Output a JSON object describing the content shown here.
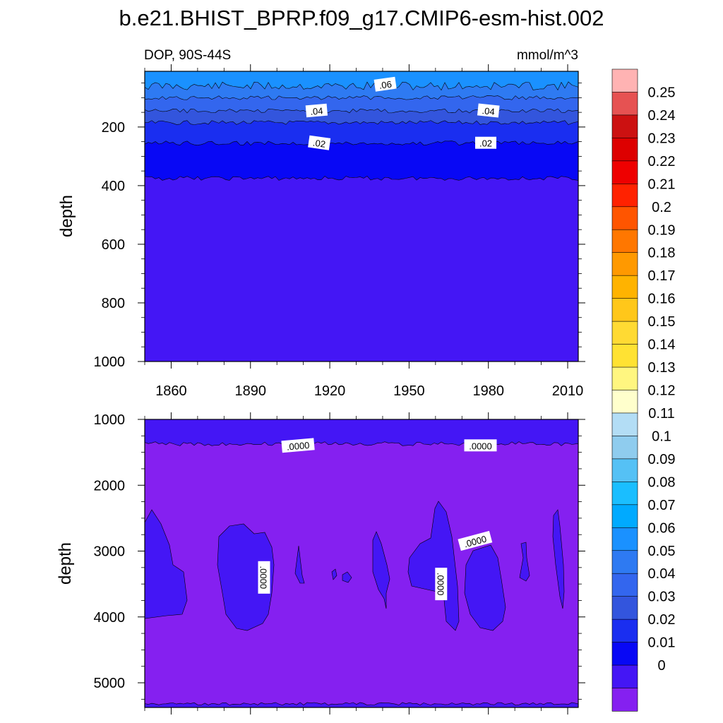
{
  "title": "b.e21.BHIST_BPRP.f09_g17.CMIP6-esm-hist.002",
  "chart_data": [
    {
      "type": "heatmap",
      "panel": "upper",
      "left_string": "DOP, 90S-44S",
      "right_string": "mmol/m^3",
      "ylabel": "depth",
      "xlabel": "",
      "x_ticks": [
        "1860",
        "1890",
        "1920",
        "1950",
        "1980",
        "2010"
      ],
      "x_tick_values": [
        1860,
        1890,
        1920,
        1950,
        1980,
        2010
      ],
      "xlim": [
        1850,
        2014
      ],
      "y_ticks": [
        "200",
        "400",
        "600",
        "800",
        "1000"
      ],
      "y_tick_values": [
        200,
        400,
        600,
        800,
        1000
      ],
      "ylim": [
        1000,
        10
      ],
      "y_reversed": true,
      "bands": [
        {
          "value": 0.06,
          "depth_top": 10,
          "depth_bottom": 60
        },
        {
          "value": 0.05,
          "depth_top": 60,
          "depth_bottom": 100
        },
        {
          "value": 0.04,
          "depth_top": 100,
          "depth_bottom": 145
        },
        {
          "value": 0.03,
          "depth_top": 145,
          "depth_bottom": 185
        },
        {
          "value": 0.02,
          "depth_top": 185,
          "depth_bottom": 255
        },
        {
          "value": 0.01,
          "depth_top": 255,
          "depth_bottom": 375
        },
        {
          "value": 0.0,
          "depth_top": 375,
          "depth_bottom": 1000
        }
      ],
      "contour_labels": [
        {
          "text": ".06",
          "year": 1941,
          "depth": 55
        },
        {
          "text": ".04",
          "year": 1915,
          "depth": 145
        },
        {
          "text": ".04",
          "year": 1980,
          "depth": 145
        },
        {
          "text": ".02",
          "year": 1916,
          "depth": 255
        },
        {
          "text": ".02",
          "year": 1979,
          "depth": 255
        }
      ]
    },
    {
      "type": "heatmap",
      "panel": "lower",
      "ylabel": "depth",
      "xlabel": "",
      "x_tick_values": [
        1860,
        1890,
        1920,
        1950,
        1980,
        2010
      ],
      "xlim": [
        1850,
        2014
      ],
      "y_ticks": [
        "1000",
        "2000",
        "3000",
        "4000",
        "5000"
      ],
      "y_tick_values": [
        1000,
        2000,
        3000,
        4000,
        5000
      ],
      "ylim": [
        5375,
        1000
      ],
      "y_reversed": true,
      "contour_labels": [
        {
          "text": ".0000",
          "year": 1908,
          "depth": 1400
        },
        {
          "text": ".0000",
          "year": 1977,
          "depth": 1400
        },
        {
          "text": ".0000",
          "year": 1975,
          "depth": 2850
        },
        {
          "text": ".0000",
          "year": 1895,
          "depth": 3400
        },
        {
          "text": ".0000",
          "year": 1962,
          "depth": 3500
        }
      ]
    }
  ],
  "colorbar": {
    "labels": [
      "0.25",
      "0.24",
      "0.23",
      "0.22",
      "0.21",
      "0.2",
      "0.19",
      "0.18",
      "0.17",
      "0.16",
      "0.15",
      "0.14",
      "0.13",
      "0.12",
      "0.11",
      "0.1",
      "0.09",
      "0.08",
      "0.07",
      "0.06",
      "0.05",
      "0.04",
      "0.03",
      "0.02",
      "0.01",
      "0"
    ],
    "colors": [
      "#FFB3B3",
      "#E65252",
      "#CC1111",
      "#DD0000",
      "#EE0000",
      "#FF2200",
      "#FF5500",
      "#FF7700",
      "#FF9900",
      "#FFB300",
      "#FFC71A",
      "#FFDA33",
      "#FFE233",
      "#FFF680",
      "#FFFFCC",
      "#B3DDF5",
      "#8FCCEE",
      "#55C1F5",
      "#1ABEFF",
      "#00AAFF",
      "#1A91FF",
      "#2E7AF2",
      "#3366EE",
      "#3355DD",
      "#1A2EF0",
      "#0808F5",
      "#4416F5",
      "#8520F0"
    ],
    "underflow_color": "#8520F0"
  }
}
